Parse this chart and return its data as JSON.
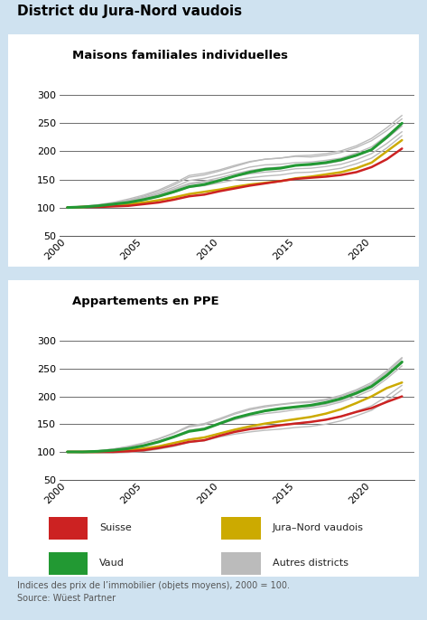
{
  "title": "District du Jura-Nord vaudois",
  "subtitle1": "Maisons familiales individuelles",
  "subtitle2": "Appartements en PPE",
  "footnote": "Indices des prix de l’immobilier (objets moyens), 2000 = 100.\nSource: Wüest Partner",
  "years": [
    2000,
    2001,
    2002,
    2003,
    2004,
    2005,
    2006,
    2007,
    2008,
    2009,
    2010,
    2011,
    2012,
    2013,
    2014,
    2015,
    2016,
    2017,
    2018,
    2019,
    2020,
    2021,
    2022
  ],
  "mfi": {
    "suisse": [
      100,
      101,
      101,
      102,
      103,
      106,
      109,
      114,
      120,
      123,
      129,
      134,
      139,
      143,
      147,
      151,
      153,
      155,
      158,
      163,
      172,
      186,
      205
    ],
    "vaud": [
      100,
      101,
      103,
      106,
      109,
      114,
      120,
      128,
      137,
      141,
      148,
      156,
      163,
      168,
      170,
      175,
      177,
      180,
      185,
      193,
      203,
      225,
      250
    ],
    "jura_nord": [
      100,
      101,
      102,
      103,
      106,
      109,
      113,
      118,
      124,
      128,
      132,
      137,
      141,
      144,
      147,
      152,
      155,
      159,
      163,
      170,
      180,
      200,
      220
    ],
    "autres": [
      [
        100,
        101,
        104,
        108,
        113,
        120,
        129,
        140,
        154,
        158,
        165,
        173,
        181,
        186,
        188,
        191,
        190,
        193,
        198,
        207,
        219,
        237,
        258
      ],
      [
        100,
        101,
        103,
        107,
        111,
        117,
        124,
        133,
        143,
        147,
        153,
        160,
        166,
        170,
        172,
        175,
        175,
        178,
        183,
        192,
        203,
        223,
        245
      ],
      [
        100,
        102,
        105,
        109,
        115,
        122,
        131,
        143,
        157,
        161,
        167,
        175,
        182,
        186,
        188,
        192,
        193,
        196,
        201,
        210,
        223,
        242,
        264
      ],
      [
        100,
        100,
        102,
        105,
        108,
        113,
        119,
        127,
        136,
        139,
        144,
        149,
        153,
        156,
        158,
        162,
        163,
        166,
        170,
        178,
        188,
        206,
        228
      ],
      [
        100,
        101,
        104,
        107,
        112,
        118,
        126,
        136,
        148,
        152,
        158,
        165,
        172,
        176,
        177,
        180,
        181,
        184,
        188,
        197,
        208,
        228,
        250
      ],
      [
        100,
        100,
        102,
        105,
        109,
        115,
        122,
        131,
        141,
        145,
        150,
        156,
        160,
        163,
        165,
        169,
        170,
        173,
        177,
        185,
        196,
        214,
        235
      ]
    ]
  },
  "ppe": {
    "suisse": [
      100,
      100,
      100,
      100,
      101,
      103,
      107,
      112,
      118,
      121,
      129,
      136,
      141,
      144,
      148,
      151,
      154,
      158,
      164,
      172,
      179,
      190,
      200
    ],
    "vaud": [
      100,
      100,
      101,
      103,
      106,
      111,
      118,
      127,
      137,
      141,
      151,
      161,
      168,
      174,
      178,
      181,
      184,
      189,
      196,
      206,
      218,
      238,
      262
    ],
    "jura_nord": [
      100,
      100,
      100,
      101,
      103,
      106,
      110,
      116,
      122,
      126,
      133,
      140,
      146,
      151,
      155,
      159,
      163,
      169,
      177,
      188,
      200,
      215,
      225
    ],
    "autres": [
      [
        100,
        100,
        102,
        105,
        109,
        115,
        123,
        133,
        145,
        149,
        158,
        168,
        176,
        181,
        185,
        188,
        189,
        193,
        200,
        210,
        222,
        243,
        268
      ],
      [
        100,
        99,
        99,
        100,
        102,
        105,
        110,
        116,
        123,
        126,
        133,
        139,
        143,
        146,
        149,
        152,
        154,
        158,
        164,
        173,
        183,
        200,
        220
      ],
      [
        100,
        100,
        102,
        105,
        110,
        116,
        124,
        134,
        147,
        151,
        160,
        170,
        178,
        183,
        186,
        189,
        191,
        195,
        202,
        212,
        225,
        246,
        270
      ],
      [
        100,
        99,
        98,
        98,
        99,
        101,
        105,
        110,
        117,
        120,
        127,
        132,
        136,
        139,
        141,
        144,
        146,
        150,
        156,
        165,
        175,
        192,
        212
      ],
      [
        100,
        100,
        101,
        103,
        107,
        112,
        119,
        128,
        139,
        143,
        152,
        161,
        168,
        173,
        176,
        180,
        182,
        186,
        193,
        204,
        216,
        237,
        260
      ],
      [
        100,
        100,
        101,
        103,
        107,
        112,
        119,
        128,
        138,
        142,
        150,
        158,
        165,
        169,
        172,
        176,
        179,
        183,
        190,
        200,
        212,
        232,
        255
      ]
    ]
  },
  "bg_color": "#cfe2f0",
  "plot_bg": "#ffffff",
  "color_suisse": "#cc2222",
  "color_vaud": "#229933",
  "color_jura": "#ccaa00",
  "color_autres": "#bbbbbb",
  "ylim": [
    50,
    320
  ],
  "yticks": [
    50,
    100,
    150,
    200,
    250,
    300
  ],
  "xticks": [
    2000,
    2005,
    2010,
    2015,
    2020
  ],
  "xlim_left": 1999.5,
  "xlim_right": 2022.8
}
